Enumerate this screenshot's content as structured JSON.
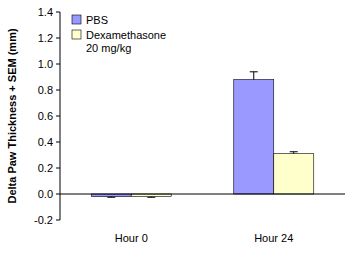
{
  "chart_data": {
    "type": "bar",
    "y_label": "Delta Paw Thickness + SEM (mm)",
    "categories": [
      "Hour 0",
      "Hour 24"
    ],
    "series": [
      {
        "name": "PBS",
        "color": "#9999ff",
        "values": [
          -0.02,
          0.88
        ],
        "errors": [
          0.005,
          0.06
        ]
      },
      {
        "name": "Dexamethasone 20 mg/kg",
        "color": "#ffffcc",
        "values": [
          -0.02,
          0.31
        ],
        "errors": [
          0.005,
          0.015
        ]
      }
    ],
    "ylim": [
      -0.2,
      1.4
    ],
    "yticks": [
      -0.2,
      {
        "value": 0,
        "label": "0.0"
      },
      0.2,
      0.4,
      0.6,
      0.8,
      {
        "value": 1,
        "label": "1.0"
      },
      1.2,
      1.4
    ],
    "legend": "upper left"
  }
}
